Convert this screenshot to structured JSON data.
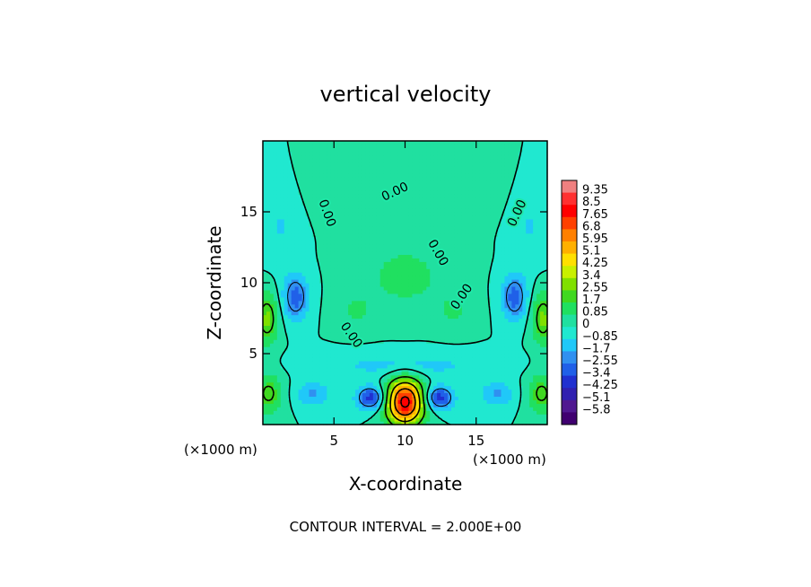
{
  "chart_data": {
    "type": "heatmap",
    "title": "vertical velocity",
    "xlabel": "X-coordinate",
    "ylabel": "Z-coordinate",
    "x_unit": "(×1000 m)",
    "y_unit": "(×1000 m)",
    "xlim": [
      0,
      20
    ],
    "ylim": [
      0,
      20
    ],
    "xticks": [
      5,
      10,
      15
    ],
    "yticks": [
      5,
      10,
      15
    ],
    "colorbar_labels": [
      "9.35",
      "8.5",
      "7.65",
      "6.8",
      "5.95",
      "5.1",
      "4.25",
      "3.4",
      "2.55",
      "1.7",
      "0.85",
      "0",
      "-0.85",
      "-1.7",
      "-2.55",
      "-3.4",
      "-4.25",
      "-5.1",
      "-5.8"
    ],
    "colorbar_colors": [
      "#f08080",
      "#ff3030",
      "#ff0000",
      "#ff4000",
      "#ff8000",
      "#ffb000",
      "#ffe000",
      "#c8f000",
      "#80e000",
      "#40d820",
      "#20e060",
      "#20e0a0",
      "#20e8d0",
      "#20c8f8",
      "#3090f0",
      "#2060e8",
      "#2030d0",
      "#3020b0",
      "#501890",
      "#400070"
    ],
    "contour_interval": "CONTOUR INTERVAL = 2.000E+00",
    "contour_labels": [
      {
        "text": "0.00",
        "x": 4.5,
        "z": 14.9,
        "angle": 70
      },
      {
        "text": "0.00",
        "x": 9.3,
        "z": 16.4,
        "angle": -25
      },
      {
        "text": "0.00",
        "x": 12.3,
        "z": 12.1,
        "angle": 60
      },
      {
        "text": "0.00",
        "x": 14.0,
        "z": 9.0,
        "angle": -55
      },
      {
        "text": "0.00",
        "x": 6.2,
        "z": 6.3,
        "angle": 55
      },
      {
        "text": "0.00",
        "x": 17.9,
        "z": 14.9,
        "angle": -65
      }
    ],
    "features": [
      {
        "x": 10,
        "z": 1.6,
        "sx": 1.3,
        "sz": 1.6,
        "v": 8.5
      },
      {
        "x": 10,
        "z": 10.5,
        "sx": 3.0,
        "sz": 2.4,
        "v": 1.2
      },
      {
        "x": 0.4,
        "z": 2.2,
        "sx": 1.0,
        "sz": 1.4,
        "v": 2.3
      },
      {
        "x": 19.6,
        "z": 2.2,
        "sx": 1.0,
        "sz": 1.4,
        "v": 2.3
      },
      {
        "x": 0.3,
        "z": 7.5,
        "sx": 0.8,
        "sz": 1.8,
        "v": 2.8
      },
      {
        "x": 19.7,
        "z": 7.5,
        "sx": 0.8,
        "sz": 1.8,
        "v": 2.8
      },
      {
        "x": 2.3,
        "z": 9.0,
        "sx": 0.9,
        "sz": 1.6,
        "v": -3.0
      },
      {
        "x": 17.7,
        "z": 9.0,
        "sx": 0.9,
        "sz": 1.6,
        "v": -3.0
      },
      {
        "x": 7.6,
        "z": 1.9,
        "sx": 1.0,
        "sz": 0.8,
        "v": -4.0
      },
      {
        "x": 12.4,
        "z": 1.9,
        "sx": 1.0,
        "sz": 0.8,
        "v": -4.0
      },
      {
        "x": 3.5,
        "z": 2.2,
        "sx": 1.2,
        "sz": 0.9,
        "v": -1.8
      },
      {
        "x": 16.5,
        "z": 2.2,
        "sx": 1.2,
        "sz": 0.9,
        "v": -1.8
      },
      {
        "x": 10,
        "z": 4.2,
        "sx": 6.0,
        "sz": 0.9,
        "v": -1.2
      },
      {
        "x": 6.5,
        "z": 8.0,
        "sx": 1.4,
        "sz": 1.4,
        "v": 0.9
      },
      {
        "x": 13.5,
        "z": 8.0,
        "sx": 1.4,
        "sz": 1.4,
        "v": 0.9
      },
      {
        "x": 5.5,
        "z": 17.0,
        "sx": 2.0,
        "sz": 2.0,
        "v": 0.8
      },
      {
        "x": 14.5,
        "z": 17.0,
        "sx": 2.0,
        "sz": 2.0,
        "v": 0.8
      },
      {
        "x": 1.2,
        "z": 14.0,
        "sx": 1.2,
        "sz": 2.5,
        "v": -0.9
      },
      {
        "x": 18.8,
        "z": 14.0,
        "sx": 1.2,
        "sz": 2.5,
        "v": -0.9
      }
    ]
  }
}
